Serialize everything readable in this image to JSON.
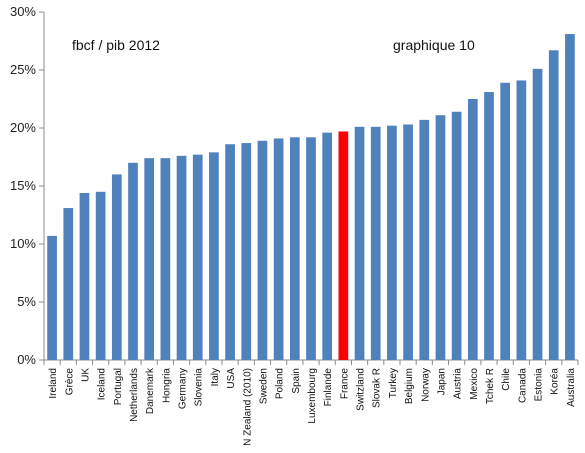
{
  "chart_data": {
    "type": "bar",
    "title": "",
    "xlabel": "",
    "ylabel": "",
    "ylim": [
      0,
      30
    ],
    "y_ticks": [
      "0%",
      "5%",
      "10%",
      "15%",
      "20%",
      "25%",
      "30%"
    ],
    "grid": false,
    "legend": "none",
    "annotations": [
      {
        "key": "subtitle",
        "text": "fbcf / pib   2012"
      },
      {
        "key": "graph_ref",
        "text": "graphique 10"
      }
    ],
    "categories": [
      "Ireland",
      "Grèce",
      "UK",
      "Iceland",
      "Portugal",
      "Netherlands",
      "Danemark",
      "Hongria",
      "Germany",
      "Slovenia",
      "Italy",
      "USA",
      "N Zealand (2010)",
      "Sweden",
      "Poland",
      "Spain",
      "Luxembourg",
      "Finlande",
      "France",
      "Switzland",
      "Slovak R",
      "Turkey",
      "Belgium",
      "Norway",
      "Japan",
      "Austria",
      "Mexico",
      "Tchek R",
      "Chile",
      "Canada",
      "Estonia",
      "Koréa",
      "Australia"
    ],
    "values": [
      10.7,
      13.1,
      14.4,
      14.5,
      16.0,
      17.0,
      17.4,
      17.4,
      17.6,
      17.7,
      17.9,
      18.6,
      18.7,
      18.9,
      19.1,
      19.2,
      19.2,
      19.6,
      19.7,
      20.1,
      20.1,
      20.2,
      20.3,
      20.7,
      21.1,
      21.4,
      22.5,
      23.1,
      23.9,
      24.1,
      25.1,
      26.7,
      28.1
    ],
    "highlight": "France",
    "colors": {
      "bar": "#4F81BD",
      "highlight": "#FF0000",
      "axis": "#8C8C8C"
    }
  }
}
